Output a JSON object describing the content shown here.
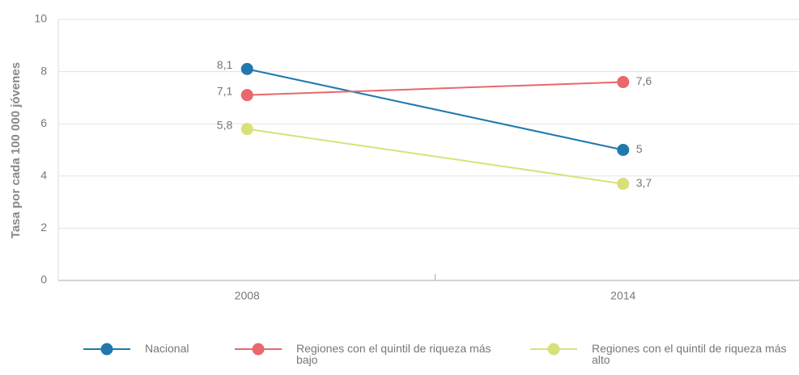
{
  "chart_data": {
    "type": "line",
    "y_label": "Tasa por cada 100 000 jóvenes",
    "categories": [
      "2008",
      "2014"
    ],
    "series": [
      {
        "name": "Nacional",
        "color": "#2178ae",
        "values": [
          8.1,
          5
        ],
        "value_labels": [
          "8,1",
          "5"
        ]
      },
      {
        "name": "Regiones con el quintil de riqueza más bajo",
        "color": "#e8686c",
        "values": [
          7.1,
          7.6
        ],
        "value_labels": [
          "7,1",
          "7,6"
        ]
      },
      {
        "name": "Regiones con el quintil de riqueza más alto",
        "color": "#d9e07a",
        "values": [
          5.8,
          3.7
        ],
        "value_labels": [
          "5,8",
          "3,7"
        ]
      }
    ],
    "ylim": [
      0,
      10
    ],
    "yticks": [
      0,
      2,
      4,
      6,
      8,
      10
    ],
    "grid": true
  }
}
